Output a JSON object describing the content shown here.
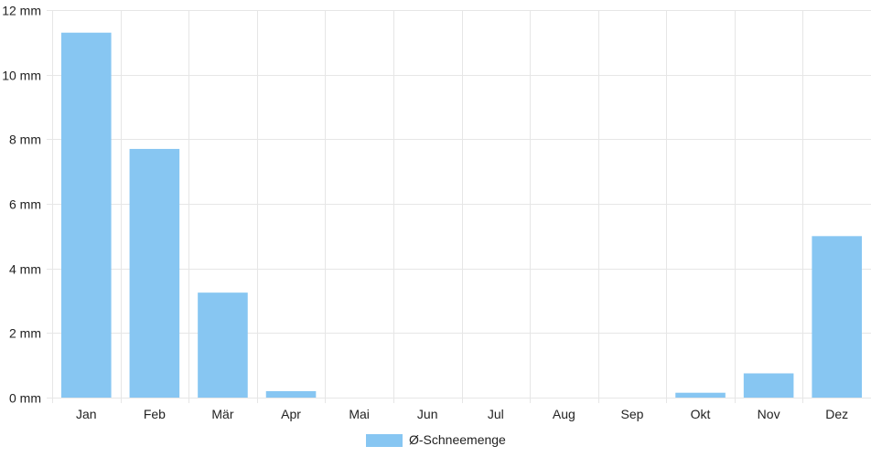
{
  "chart_data": {
    "type": "bar",
    "categories": [
      "Jan",
      "Feb",
      "Mär",
      "Apr",
      "Mai",
      "Jun",
      "Jul",
      "Aug",
      "Sep",
      "Okt",
      "Nov",
      "Dez"
    ],
    "series": [
      {
        "name": "Ø-Schneemenge",
        "values": [
          11.3,
          7.7,
          3.25,
          0.2,
          0,
          0,
          0,
          0,
          0,
          0.15,
          0.75,
          5.0
        ],
        "color": "#87c6f2"
      }
    ],
    "ylim": [
      0,
      12
    ],
    "yticks": [
      0,
      2,
      4,
      6,
      8,
      10,
      12
    ],
    "ytick_labels": [
      "0 mm",
      "2 mm",
      "4 mm",
      "6 mm",
      "8 mm",
      "10 mm",
      "12 mm"
    ],
    "grid": true,
    "grid_color": "#e6e6e6",
    "legend_position": "bottom-center"
  }
}
